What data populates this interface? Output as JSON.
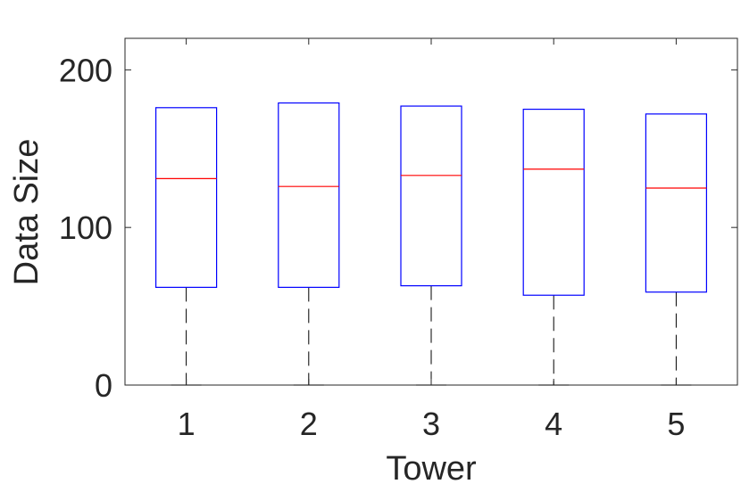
{
  "chart_data": {
    "type": "box",
    "title": "",
    "xlabel": "Tower",
    "ylabel": "Data Size",
    "categories": [
      "1",
      "2",
      "3",
      "4",
      "5"
    ],
    "ylim": [
      0,
      220
    ],
    "yticks": [
      0,
      100,
      200
    ],
    "ytick_labels": [
      "0",
      "100",
      "200"
    ],
    "grid": false,
    "boxes": [
      {
        "category": "1",
        "whisker_low": 0,
        "q1": 62,
        "median": 131,
        "q3": 176,
        "whisker_high": 176
      },
      {
        "category": "2",
        "whisker_low": 0,
        "q1": 62,
        "median": 126,
        "q3": 179,
        "whisker_high": 179
      },
      {
        "category": "3",
        "whisker_low": 0,
        "q1": 63,
        "median": 133,
        "q3": 177,
        "whisker_high": 177
      },
      {
        "category": "4",
        "whisker_low": 0,
        "q1": 57,
        "median": 137,
        "q3": 175,
        "whisker_high": 175
      },
      {
        "category": "5",
        "whisker_low": 0,
        "q1": 59,
        "median": 125,
        "q3": 172,
        "whisker_high": 172
      }
    ],
    "colors": {
      "box": "#0000ff",
      "median": "#ff0000",
      "whisker": "#000000",
      "axis": "#262626"
    }
  }
}
